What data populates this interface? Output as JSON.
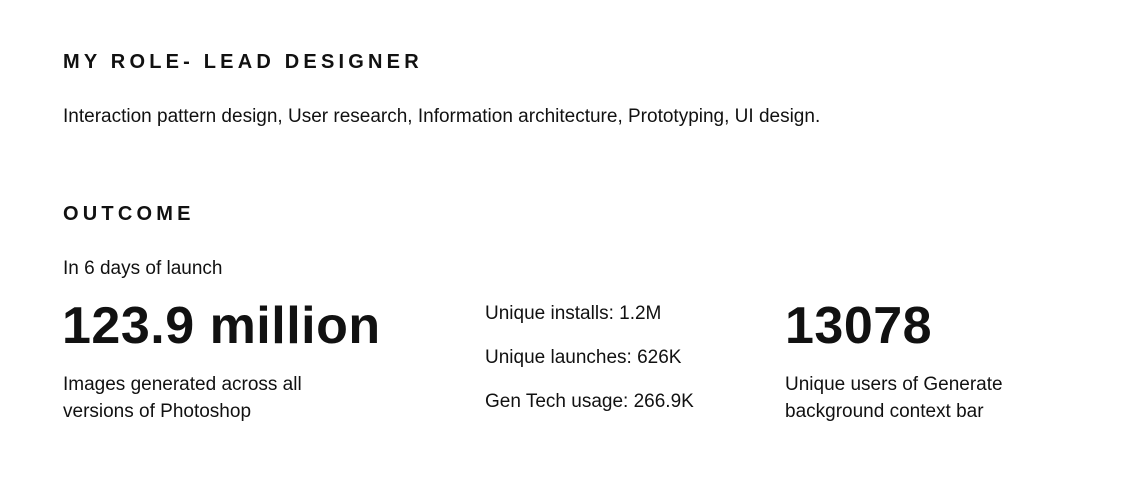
{
  "role": {
    "heading": "MY ROLE- LEAD DESIGNER",
    "description": "Interaction pattern design, User research, Information architecture, Prototyping, UI design."
  },
  "outcome": {
    "heading": "OUTCOME",
    "intro": "In 6 days of launch",
    "metric_images": {
      "value": "123.9 million",
      "caption_line1": "Images generated across all",
      "caption_line2": "versions of Photoshop"
    },
    "stats": [
      {
        "text": "Unique installs:  1.2M"
      },
      {
        "text": "Unique launches: 626K"
      },
      {
        "text": "Gen Tech usage: 266.9K"
      }
    ],
    "metric_users": {
      "value": "13078",
      "caption_line1": "Unique users of Generate",
      "caption_line2": "background context bar"
    }
  }
}
